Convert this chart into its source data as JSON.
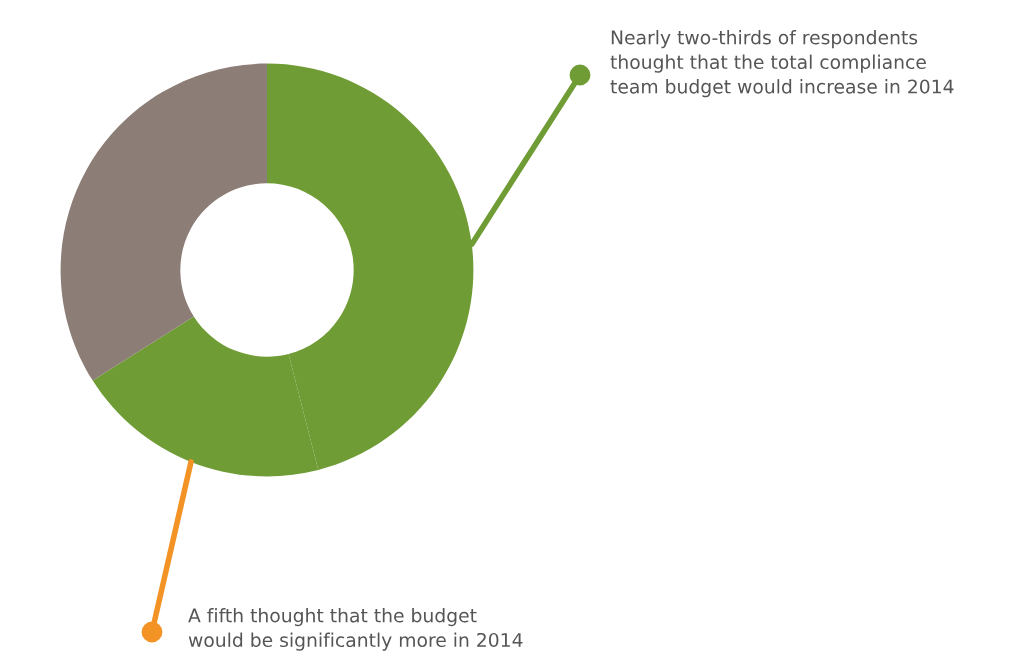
{
  "chart_data": {
    "type": "donut",
    "categories": [
      null,
      null,
      null
    ],
    "values": [
      46,
      20,
      34
    ],
    "colors": [
      "#6f9c34",
      "#6f9c34",
      "#8c7d77"
    ],
    "annotations": [
      "Nearly two-thirds of respondents\nthought that the total compliance\nteam budget would increase in 2014",
      "A fifth thought that the budget\nwould be significantly more in 2014"
    ]
  }
}
